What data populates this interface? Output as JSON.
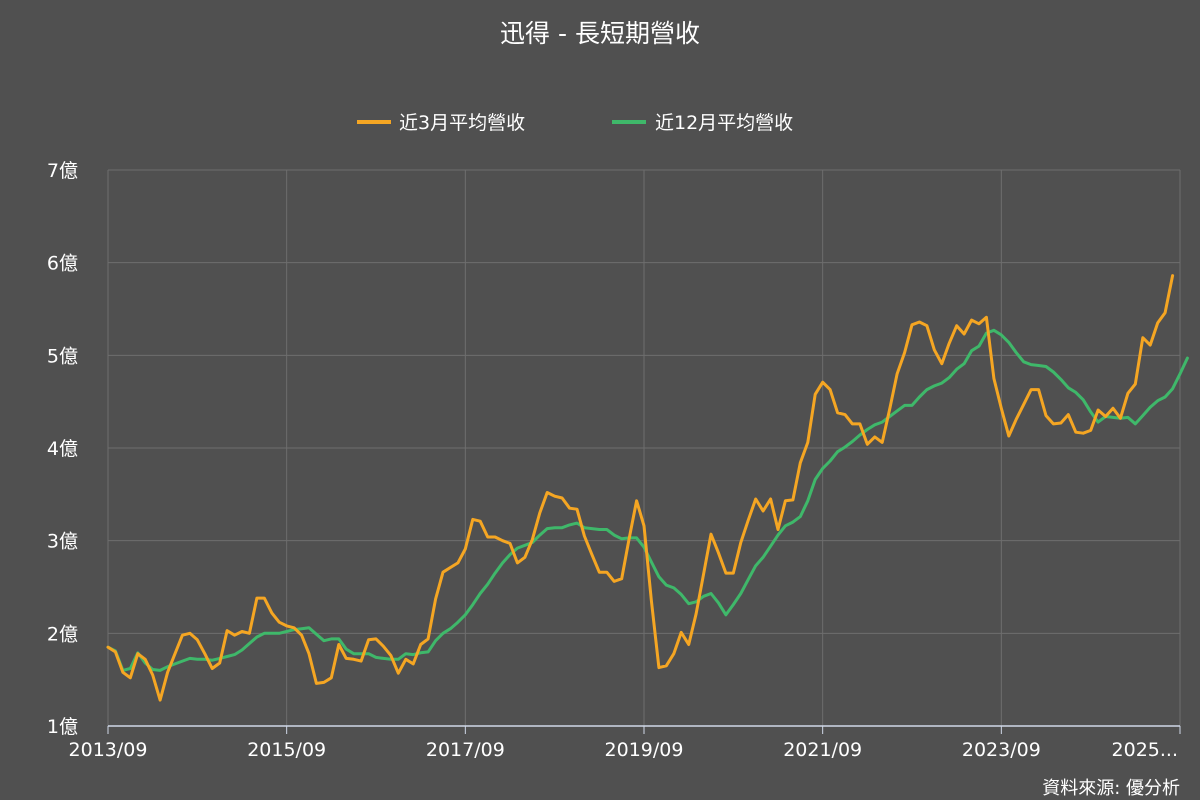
{
  "chart_data": {
    "type": "line",
    "title": "迅得 - 長短期營收",
    "source": "資料來源: 優分析",
    "legend_position": "top-center",
    "grid": true,
    "ylim": [
      1,
      7
    ],
    "y_ticks": [
      {
        "value": 1,
        "label": "1億"
      },
      {
        "value": 2,
        "label": "2億"
      },
      {
        "value": 3,
        "label": "3億"
      },
      {
        "value": 4,
        "label": "4億"
      },
      {
        "value": 5,
        "label": "5億"
      },
      {
        "value": 6,
        "label": "6億"
      },
      {
        "value": 7,
        "label": "7億"
      }
    ],
    "xlim": [
      "2013-09",
      "2025-09"
    ],
    "x_ticks": [
      {
        "value": "2013-09",
        "label": "2013/09"
      },
      {
        "value": "2015-09",
        "label": "2015/09"
      },
      {
        "value": "2017-09",
        "label": "2017/09"
      },
      {
        "value": "2019-09",
        "label": "2019/09"
      },
      {
        "value": "2021-09",
        "label": "2021/09"
      },
      {
        "value": "2023-09",
        "label": "2023/09"
      },
      {
        "value": "2025-09",
        "label": "2025..."
      }
    ],
    "start_month": "2013-09",
    "series": [
      {
        "name": "近3月平均營收",
        "color": "#f5a623",
        "values": [
          1.85,
          1.8,
          1.58,
          1.52,
          1.78,
          1.72,
          1.55,
          1.28,
          1.58,
          1.78,
          1.98,
          2.0,
          1.93,
          1.78,
          1.62,
          1.68,
          2.03,
          1.98,
          2.02,
          2.0,
          2.38,
          2.38,
          2.22,
          2.12,
          2.08,
          2.06,
          1.98,
          1.78,
          1.46,
          1.47,
          1.52,
          1.88,
          1.73,
          1.72,
          1.7,
          1.93,
          1.94,
          1.86,
          1.76,
          1.57,
          1.72,
          1.67,
          1.88,
          1.94,
          2.37,
          2.66,
          2.71,
          2.76,
          2.91,
          3.23,
          3.21,
          3.04,
          3.04,
          3.0,
          2.97,
          2.76,
          2.82,
          3.01,
          3.3,
          3.52,
          3.48,
          3.46,
          3.35,
          3.34,
          3.05,
          2.85,
          2.66,
          2.66,
          2.56,
          2.59,
          3.02,
          3.43,
          3.16,
          2.35,
          1.63,
          1.65,
          1.78,
          2.01,
          1.88,
          2.21,
          2.64,
          3.07,
          2.87,
          2.65,
          2.65,
          2.98,
          3.22,
          3.45,
          3.32,
          3.45,
          3.12,
          3.43,
          3.44,
          3.84,
          4.06,
          4.58,
          4.71,
          4.63,
          4.38,
          4.36,
          4.26,
          4.26,
          4.04,
          4.12,
          4.06,
          4.42,
          4.8,
          5.03,
          5.33,
          5.36,
          5.32,
          5.06,
          4.91,
          5.13,
          5.32,
          5.23,
          5.38,
          5.34,
          5.41,
          4.75,
          4.43,
          4.13,
          4.31,
          4.47,
          4.63,
          4.63,
          4.35,
          4.26,
          4.27,
          4.36,
          4.17,
          4.16,
          4.19,
          4.41,
          4.34,
          4.43,
          4.32,
          4.59,
          4.69,
          5.19,
          5.11,
          5.35,
          5.46,
          5.86
        ]
      },
      {
        "name": "近12月平均營收",
        "color": "#3fb86a",
        "values": [
          1.85,
          1.81,
          1.6,
          1.62,
          1.79,
          1.68,
          1.61,
          1.6,
          1.64,
          1.67,
          1.7,
          1.73,
          1.72,
          1.72,
          1.71,
          1.73,
          1.75,
          1.77,
          1.82,
          1.89,
          1.96,
          2.0,
          2.0,
          2.0,
          2.02,
          2.04,
          2.05,
          2.06,
          1.99,
          1.92,
          1.94,
          1.94,
          1.83,
          1.78,
          1.78,
          1.78,
          1.74,
          1.73,
          1.72,
          1.72,
          1.78,
          1.77,
          1.79,
          1.8,
          1.92,
          2.0,
          2.05,
          2.12,
          2.2,
          2.31,
          2.43,
          2.53,
          2.65,
          2.76,
          2.85,
          2.92,
          2.95,
          2.98,
          3.06,
          3.13,
          3.14,
          3.14,
          3.17,
          3.19,
          3.14,
          3.13,
          3.12,
          3.12,
          3.06,
          3.02,
          3.03,
          3.03,
          2.93,
          2.77,
          2.61,
          2.52,
          2.49,
          2.42,
          2.32,
          2.34,
          2.4,
          2.43,
          2.33,
          2.2,
          2.31,
          2.43,
          2.58,
          2.73,
          2.82,
          2.94,
          3.06,
          3.16,
          3.2,
          3.26,
          3.43,
          3.66,
          3.78,
          3.86,
          3.96,
          4.01,
          4.07,
          4.14,
          4.2,
          4.25,
          4.28,
          4.34,
          4.4,
          4.46,
          4.46,
          4.55,
          4.63,
          4.67,
          4.7,
          4.76,
          4.85,
          4.91,
          5.05,
          5.1,
          5.24,
          5.27,
          5.22,
          5.14,
          5.03,
          4.93,
          4.9,
          4.89,
          4.88,
          4.82,
          4.74,
          4.65,
          4.6,
          4.52,
          4.39,
          4.28,
          4.34,
          4.33,
          4.32,
          4.33,
          4.26,
          4.35,
          4.44,
          4.51,
          4.55,
          4.64,
          4.8,
          4.97
        ]
      }
    ]
  }
}
